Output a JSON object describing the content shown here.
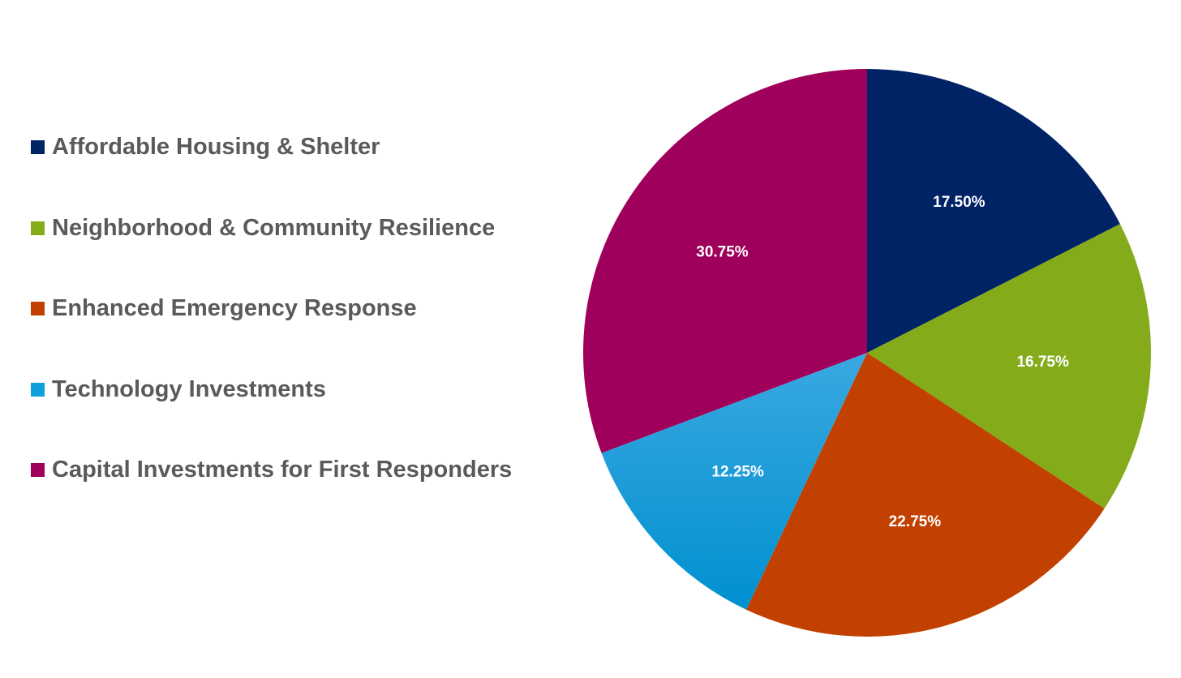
{
  "chart_data": {
    "type": "pie",
    "title": "",
    "legend_position": "left",
    "slices": [
      {
        "label": "Affordable Housing & Shelter",
        "value": 17.5,
        "display": "17.50%",
        "color": "#002366"
      },
      {
        "label": "Neighborhood & Community Resilience",
        "value": 16.75,
        "display": "16.75%",
        "color": "#84AC1A"
      },
      {
        "label": "Enhanced Emergency Response",
        "value": 22.75,
        "display": "22.75%",
        "color": "#C24100"
      },
      {
        "label": "Technology Investments",
        "value": 12.25,
        "display": "12.25%",
        "color": "#0EA0DC"
      },
      {
        "label": "Capital Investments for First Responders",
        "value": 30.75,
        "display": "30.75%",
        "color": "#9E005C"
      }
    ]
  }
}
